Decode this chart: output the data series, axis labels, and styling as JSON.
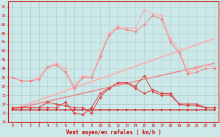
{
  "x": [
    0,
    1,
    2,
    3,
    4,
    5,
    6,
    7,
    8,
    9,
    10,
    11,
    12,
    13,
    14,
    15,
    16,
    17,
    18,
    19,
    20,
    21,
    22,
    23
  ],
  "line_flat": [
    17,
    17,
    17,
    17,
    17,
    17,
    17,
    17,
    17,
    17,
    17,
    17,
    17,
    17,
    17,
    17,
    17,
    17,
    17,
    17,
    17,
    17,
    17,
    17
  ],
  "line_mid1": [
    18,
    18,
    18,
    18,
    21,
    20,
    19,
    18,
    18,
    15,
    24,
    29,
    32,
    32,
    29,
    26,
    28,
    26,
    26,
    20,
    20,
    20,
    18,
    18
  ],
  "line_mid2": [
    18,
    18,
    18,
    18,
    18,
    18,
    21,
    15,
    14,
    18,
    26,
    29,
    32,
    32,
    30,
    36,
    27,
    25,
    25,
    20,
    19,
    19,
    18,
    18
  ],
  "line_upper1": [
    35,
    33,
    33,
    34,
    41,
    42,
    38,
    29,
    35,
    35,
    47,
    59,
    63,
    62,
    61,
    65,
    70,
    68,
    55,
    49,
    37,
    38,
    40,
    40
  ],
  "line_upper2": [
    35,
    33,
    33,
    35,
    41,
    43,
    40,
    30,
    36,
    35,
    48,
    60,
    64,
    63,
    63,
    73,
    71,
    70,
    57,
    50,
    38,
    40,
    42,
    41
  ],
  "trend1_y0": 17,
  "trend1_y1": 43,
  "trend2_y0": 17,
  "trend2_y1": 57,
  "bg_color": "#cce8e8",
  "grid_color": "#aacccc",
  "color_dark": "#cc0000",
  "color_mid": "#dd4444",
  "color_light1": "#ee8888",
  "color_light2": "#ffaaaa",
  "xlabel": "Vent moyen/en rafales ( km/h )",
  "ylim": [
    10,
    78
  ],
  "yticks": [
    10,
    15,
    20,
    25,
    30,
    35,
    40,
    45,
    50,
    55,
    60,
    65,
    70,
    75
  ],
  "xticks": [
    0,
    1,
    2,
    3,
    4,
    5,
    6,
    7,
    8,
    9,
    10,
    11,
    12,
    13,
    14,
    15,
    16,
    17,
    18,
    19,
    20,
    21,
    22,
    23
  ]
}
